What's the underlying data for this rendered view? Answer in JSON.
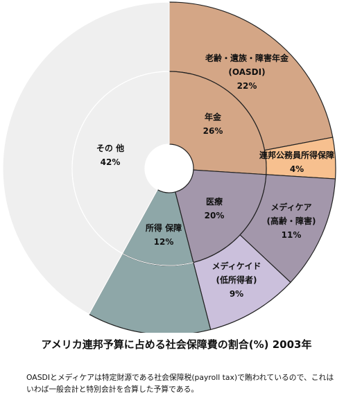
{
  "chart_data": {
    "type": "pie",
    "title": "アメリカ連邦予算に占める社会保障費の割合(%) 2003年",
    "inner_ring": [
      {
        "label": "年金",
        "value": 26,
        "value_label": "26%",
        "color": "#d4a686"
      },
      {
        "label": "医療",
        "value": 20,
        "value_label": "20%",
        "color": "#a397ab"
      },
      {
        "label": "所得 保障",
        "value": 12,
        "value_label": "12%",
        "color": "#8ea7a8"
      },
      {
        "label": "その 他",
        "value": 42,
        "value_label": "42%",
        "color": "#efefef"
      }
    ],
    "outer_ring": [
      {
        "label_lines": [
          "老齢・遺族・障害年金",
          "(OASDI)"
        ],
        "value": 22,
        "value_label": "22%",
        "color": "#d4a686"
      },
      {
        "label_lines": [
          "連邦公務員所得保障"
        ],
        "value": 4,
        "value_label": "4%",
        "color": "#f7c08f"
      },
      {
        "label_lines": [
          "メディケア",
          "(高齢・障害)"
        ],
        "value": 11,
        "value_label": "11%",
        "color": "#a397ab"
      },
      {
        "label_lines": [
          "メディケイド",
          "(低所得者)"
        ],
        "value": 9,
        "value_label": "9%",
        "color": "#cbc0dc"
      },
      {
        "label_lines": [],
        "value": 12,
        "value_label": "",
        "color": "#8ea7a8"
      },
      {
        "label_lines": [],
        "value": 42,
        "value_label": "",
        "color": "#efefef"
      }
    ],
    "note": "OASDIとメディケアは特定財源である社会保障税(payroll tax)で賄われているので、これはいわば一般会計と特別会計を合算した予算である。"
  }
}
